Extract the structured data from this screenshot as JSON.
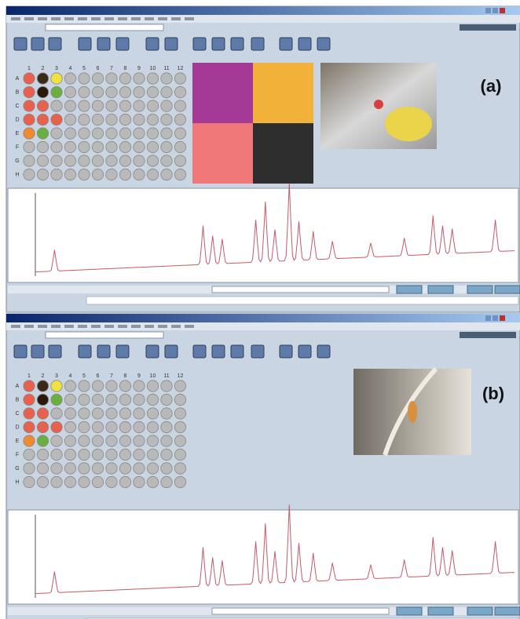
{
  "panels": [
    {
      "label": "(a)",
      "rows": [
        "A",
        "B",
        "C",
        "D",
        "E",
        "F",
        "G",
        "H"
      ],
      "columns": [
        "1",
        "2",
        "3",
        "4",
        "5",
        "6",
        "7",
        "8",
        "9",
        "10",
        "11",
        "12"
      ]
    },
    {
      "label": "(b)",
      "rows": [
        "A",
        "B",
        "C",
        "D",
        "E",
        "F",
        "G",
        "H"
      ],
      "columns": [
        "1",
        "2",
        "3",
        "4",
        "5",
        "6",
        "7",
        "8",
        "9",
        "10",
        "11",
        "12"
      ]
    }
  ]
}
